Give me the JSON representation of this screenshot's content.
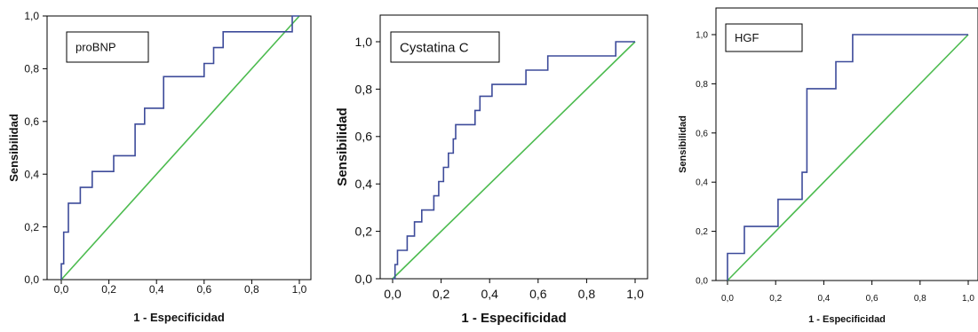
{
  "chart_data": [
    {
      "type": "line",
      "title": "proBNP",
      "xlabel": "1 - Especificidad",
      "ylabel": "Sensibilidad",
      "xlim": [
        0,
        1
      ],
      "ylim": [
        0,
        1
      ],
      "x_ticks": [
        "0,0",
        "0,2",
        "0,4",
        "0,6",
        "0,8",
        "1,0"
      ],
      "y_ticks": [
        "0,0",
        "0,2",
        "0,4",
        "0,6",
        "0,8",
        "1,0"
      ],
      "grid": false,
      "curve_color": "#3d4b9a",
      "reference_color": "#4cbb4f",
      "series": [
        {
          "step": true,
          "points": [
            [
              0,
              0
            ],
            [
              0,
              0.06
            ],
            [
              0.01,
              0.06
            ],
            [
              0.01,
              0.18
            ],
            [
              0.03,
              0.18
            ],
            [
              0.03,
              0.29
            ],
            [
              0.08,
              0.29
            ],
            [
              0.08,
              0.35
            ],
            [
              0.13,
              0.35
            ],
            [
              0.13,
              0.41
            ],
            [
              0.22,
              0.41
            ],
            [
              0.22,
              0.47
            ],
            [
              0.31,
              0.47
            ],
            [
              0.31,
              0.59
            ],
            [
              0.35,
              0.59
            ],
            [
              0.35,
              0.65
            ],
            [
              0.43,
              0.65
            ],
            [
              0.43,
              0.77
            ],
            [
              0.6,
              0.77
            ],
            [
              0.6,
              0.82
            ],
            [
              0.64,
              0.82
            ],
            [
              0.64,
              0.88
            ],
            [
              0.68,
              0.88
            ],
            [
              0.68,
              0.94
            ],
            [
              0.97,
              0.94
            ],
            [
              0.97,
              1.0
            ],
            [
              1.0,
              1.0
            ]
          ]
        },
        {
          "points": [
            [
              0,
              0
            ],
            [
              1,
              1
            ]
          ]
        }
      ]
    },
    {
      "type": "line",
      "title": "Cystatina C",
      "xlabel": "1 - Especificidad",
      "ylabel": "Sensibilidad",
      "xlim": [
        0,
        1
      ],
      "ylim": [
        0,
        1
      ],
      "x_ticks": [
        "0,0",
        "0,2",
        "0,4",
        "0,6",
        "0,8",
        "1,0"
      ],
      "y_ticks": [
        "0,0",
        "0,2",
        "0,4",
        "0,6",
        "0,8",
        "1,0"
      ],
      "grid": false,
      "curve_color": "#3d4b9a",
      "reference_color": "#4cbb4f",
      "series": [
        {
          "step": true,
          "points": [
            [
              0,
              0
            ],
            [
              0.01,
              0
            ],
            [
              0.01,
              0.06
            ],
            [
              0.02,
              0.06
            ],
            [
              0.02,
              0.12
            ],
            [
              0.06,
              0.12
            ],
            [
              0.06,
              0.18
            ],
            [
              0.09,
              0.18
            ],
            [
              0.09,
              0.24
            ],
            [
              0.12,
              0.24
            ],
            [
              0.12,
              0.29
            ],
            [
              0.17,
              0.29
            ],
            [
              0.17,
              0.35
            ],
            [
              0.19,
              0.35
            ],
            [
              0.19,
              0.41
            ],
            [
              0.21,
              0.41
            ],
            [
              0.21,
              0.47
            ],
            [
              0.23,
              0.47
            ],
            [
              0.23,
              0.53
            ],
            [
              0.25,
              0.53
            ],
            [
              0.25,
              0.59
            ],
            [
              0.26,
              0.59
            ],
            [
              0.26,
              0.65
            ],
            [
              0.34,
              0.65
            ],
            [
              0.34,
              0.71
            ],
            [
              0.36,
              0.71
            ],
            [
              0.36,
              0.77
            ],
            [
              0.41,
              0.77
            ],
            [
              0.41,
              0.82
            ],
            [
              0.55,
              0.82
            ],
            [
              0.55,
              0.88
            ],
            [
              0.64,
              0.88
            ],
            [
              0.64,
              0.94
            ],
            [
              0.92,
              0.94
            ],
            [
              0.92,
              1.0
            ],
            [
              1.0,
              1.0
            ]
          ]
        },
        {
          "points": [
            [
              0,
              0
            ],
            [
              1,
              1
            ]
          ]
        }
      ]
    },
    {
      "type": "line",
      "title": "HGF",
      "xlabel": "1 - Especificidad",
      "ylabel": "Sensibilidad",
      "xlim": [
        0,
        1
      ],
      "ylim": [
        0,
        1
      ],
      "x_ticks": [
        "0,0",
        "0,2",
        "0,4",
        "0,6",
        "0,8",
        "1,0"
      ],
      "y_ticks": [
        "0,0",
        "0,2",
        "0,4",
        "0,6",
        "0,8",
        "1,0"
      ],
      "grid": false,
      "curve_color": "#3d4b9a",
      "reference_color": "#4cbb4f",
      "series": [
        {
          "step": true,
          "points": [
            [
              0,
              0
            ],
            [
              0,
              0.11
            ],
            [
              0.07,
              0.11
            ],
            [
              0.07,
              0.22
            ],
            [
              0.21,
              0.22
            ],
            [
              0.21,
              0.33
            ],
            [
              0.31,
              0.33
            ],
            [
              0.31,
              0.44
            ],
            [
              0.33,
              0.44
            ],
            [
              0.33,
              0.78
            ],
            [
              0.45,
              0.78
            ],
            [
              0.45,
              0.89
            ],
            [
              0.52,
              0.89
            ],
            [
              0.52,
              1.0
            ],
            [
              1.0,
              1.0
            ]
          ]
        },
        {
          "points": [
            [
              0,
              0
            ],
            [
              1,
              1
            ]
          ]
        }
      ]
    }
  ]
}
